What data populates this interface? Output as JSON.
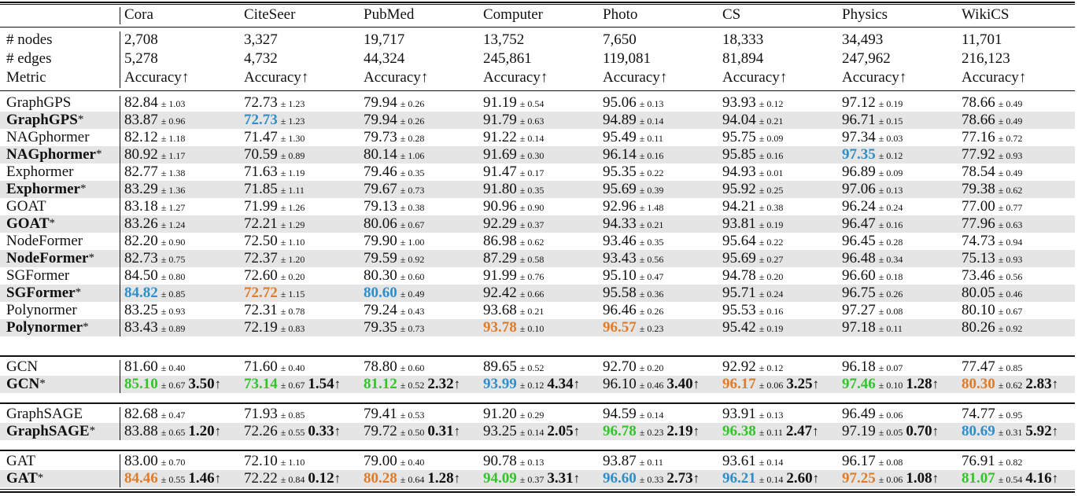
{
  "colors": {
    "first": "#33c42b",
    "second": "#e07b28",
    "third": "#2e8fc8",
    "shade": "#e5e5e5"
  },
  "header": {
    "columns": [
      "Cora",
      "CiteSeer",
      "PubMed",
      "Computer",
      "Photo",
      "CS",
      "Physics",
      "WikiCS"
    ],
    "stats": [
      {
        "label": "# nodes",
        "values": [
          "2,708",
          "3,327",
          "19,717",
          "13,752",
          "7,650",
          "18,333",
          "34,493",
          "11,701"
        ]
      },
      {
        "label": "# edges",
        "values": [
          "5,278",
          "4,732",
          "44,324",
          "245,861",
          "119,081",
          "81,894",
          "247,962",
          "216,123"
        ]
      },
      {
        "label": "Metric",
        "values": [
          "Accuracy↑",
          "Accuracy↑",
          "Accuracy↑",
          "Accuracy↑",
          "Accuracy↑",
          "Accuracy↑",
          "Accuracy↑",
          "Accuracy↑"
        ]
      }
    ]
  },
  "groups": [
    {
      "rows": [
        {
          "name": "GraphGPS",
          "star": false,
          "cells": [
            [
              "82.84",
              "± 1.03"
            ],
            [
              "72.73",
              "± 1.23"
            ],
            [
              "79.94",
              "± 0.26"
            ],
            [
              "91.19",
              "± 0.54"
            ],
            [
              "95.06",
              "± 0.13"
            ],
            [
              "93.93",
              "± 0.12"
            ],
            [
              "97.12",
              "± 0.19"
            ],
            [
              "78.66",
              "± 0.49"
            ]
          ]
        },
        {
          "name": "GraphGPS",
          "star": true,
          "cells": [
            [
              "83.87",
              "± 0.96"
            ],
            [
              "72.73",
              "± 1.23",
              "blue"
            ],
            [
              "79.94",
              "± 0.26"
            ],
            [
              "91.79",
              "± 0.63"
            ],
            [
              "94.89",
              "± 0.14"
            ],
            [
              "94.04",
              "± 0.21"
            ],
            [
              "96.71",
              "± 0.15"
            ],
            [
              "78.66",
              "± 0.49"
            ]
          ]
        },
        {
          "name": "NAGphormer",
          "star": false,
          "cells": [
            [
              "82.12",
              "± 1.18"
            ],
            [
              "71.47",
              "± 1.30"
            ],
            [
              "79.73",
              "± 0.28"
            ],
            [
              "91.22",
              "± 0.14"
            ],
            [
              "95.49",
              "± 0.11"
            ],
            [
              "95.75",
              "± 0.09"
            ],
            [
              "97.34",
              "± 0.03"
            ],
            [
              "77.16",
              "± 0.72"
            ]
          ]
        },
        {
          "name": "NAGphormer",
          "star": true,
          "cells": [
            [
              "80.92",
              "± 1.17"
            ],
            [
              "70.59",
              "± 0.89"
            ],
            [
              "80.14",
              "± 1.06"
            ],
            [
              "91.69",
              "± 0.30"
            ],
            [
              "96.14",
              "± 0.16"
            ],
            [
              "95.85",
              "± 0.16"
            ],
            [
              "97.35",
              "± 0.12",
              "blue"
            ],
            [
              "77.92",
              "± 0.93"
            ]
          ]
        },
        {
          "name": "Exphormer",
          "star": false,
          "cells": [
            [
              "82.77",
              "± 1.38"
            ],
            [
              "71.63",
              "± 1.19"
            ],
            [
              "79.46",
              "± 0.35"
            ],
            [
              "91.47",
              "± 0.17"
            ],
            [
              "95.35",
              "± 0.22"
            ],
            [
              "94.93",
              "± 0.01"
            ],
            [
              "96.89",
              "± 0.09"
            ],
            [
              "78.54",
              "± 0.49"
            ]
          ]
        },
        {
          "name": "Exphormer",
          "star": true,
          "cells": [
            [
              "83.29",
              "± 1.36"
            ],
            [
              "71.85",
              "± 1.11"
            ],
            [
              "79.67",
              "± 0.73"
            ],
            [
              "91.80",
              "± 0.35"
            ],
            [
              "95.69",
              "± 0.39"
            ],
            [
              "95.92",
              "± 0.25"
            ],
            [
              "97.06",
              "± 0.13"
            ],
            [
              "79.38",
              "± 0.62"
            ]
          ]
        },
        {
          "name": "GOAT",
          "star": false,
          "cells": [
            [
              "83.18",
              "± 1.27"
            ],
            [
              "71.99",
              "± 1.26"
            ],
            [
              "79.13",
              "± 0.38"
            ],
            [
              "90.96",
              "± 0.90"
            ],
            [
              "92.96",
              "± 1.48"
            ],
            [
              "94.21",
              "± 0.38"
            ],
            [
              "96.24",
              "± 0.24"
            ],
            [
              "77.00",
              "± 0.77"
            ]
          ]
        },
        {
          "name": "GOAT",
          "star": true,
          "cells": [
            [
              "83.26",
              "± 1.24"
            ],
            [
              "72.21",
              "± 1.29"
            ],
            [
              "80.06",
              "± 0.67"
            ],
            [
              "92.29",
              "± 0.37"
            ],
            [
              "94.33",
              "± 0.21"
            ],
            [
              "93.81",
              "± 0.19"
            ],
            [
              "96.47",
              "± 0.16"
            ],
            [
              "77.96",
              "± 0.63"
            ]
          ]
        },
        {
          "name": "NodeFormer",
          "star": false,
          "cells": [
            [
              "82.20",
              "± 0.90"
            ],
            [
              "72.50",
              "± 1.10"
            ],
            [
              "79.90",
              "± 1.00"
            ],
            [
              "86.98",
              "± 0.62"
            ],
            [
              "93.46",
              "± 0.35"
            ],
            [
              "95.64",
              "± 0.22"
            ],
            [
              "96.45",
              "± 0.28"
            ],
            [
              "74.73",
              "± 0.94"
            ]
          ]
        },
        {
          "name": "NodeFormer",
          "star": true,
          "cells": [
            [
              "82.73",
              "± 0.75"
            ],
            [
              "72.37",
              "± 1.20"
            ],
            [
              "79.59",
              "± 0.92"
            ],
            [
              "87.29",
              "± 0.58"
            ],
            [
              "93.43",
              "± 0.56"
            ],
            [
              "95.69",
              "± 0.27"
            ],
            [
              "96.48",
              "± 0.34"
            ],
            [
              "75.13",
              "± 0.93"
            ]
          ]
        },
        {
          "name": "SGFormer",
          "star": false,
          "cells": [
            [
              "84.50",
              "± 0.80"
            ],
            [
              "72.60",
              "± 0.20"
            ],
            [
              "80.30",
              "± 0.60"
            ],
            [
              "91.99",
              "± 0.76"
            ],
            [
              "95.10",
              "± 0.47"
            ],
            [
              "94.78",
              "± 0.20"
            ],
            [
              "96.60",
              "± 0.18"
            ],
            [
              "73.46",
              "± 0.56"
            ]
          ]
        },
        {
          "name": "SGFormer",
          "star": true,
          "cells": [
            [
              "84.82",
              "± 0.85",
              "blue"
            ],
            [
              "72.72",
              "± 1.15",
              "orange"
            ],
            [
              "80.60",
              "± 0.49",
              "blue"
            ],
            [
              "92.42",
              "± 0.66"
            ],
            [
              "95.58",
              "± 0.36"
            ],
            [
              "95.71",
              "± 0.24"
            ],
            [
              "96.75",
              "± 0.26"
            ],
            [
              "80.05",
              "± 0.46"
            ]
          ]
        },
        {
          "name": "Polynormer",
          "star": false,
          "cells": [
            [
              "83.25",
              "± 0.93"
            ],
            [
              "72.31",
              "± 0.78"
            ],
            [
              "79.24",
              "± 0.43"
            ],
            [
              "93.68",
              "± 0.21"
            ],
            [
              "96.46",
              "± 0.26"
            ],
            [
              "95.53",
              "± 0.16"
            ],
            [
              "97.27",
              "± 0.08"
            ],
            [
              "80.10",
              "± 0.67"
            ]
          ]
        },
        {
          "name": "Polynormer",
          "star": true,
          "cells": [
            [
              "83.43",
              "± 0.89"
            ],
            [
              "72.19",
              "± 0.83"
            ],
            [
              "79.35",
              "± 0.73"
            ],
            [
              "93.78",
              "± 0.10",
              "orange"
            ],
            [
              "96.57",
              "± 0.23",
              "orange"
            ],
            [
              "95.42",
              "± 0.19"
            ],
            [
              "97.18",
              "± 0.11"
            ],
            [
              "80.26",
              "± 0.92"
            ]
          ]
        }
      ]
    },
    {
      "rows": [
        {
          "name": "GCN",
          "star": false,
          "cells": [
            [
              "81.60",
              "± 0.40"
            ],
            [
              "71.60",
              "± 0.40"
            ],
            [
              "78.80",
              "± 0.60"
            ],
            [
              "89.65",
              "± 0.52"
            ],
            [
              "92.70",
              "± 0.20"
            ],
            [
              "92.92",
              "± 0.12"
            ],
            [
              "96.18",
              "± 0.07"
            ],
            [
              "77.47",
              "± 0.85"
            ]
          ]
        },
        {
          "name": "GCN",
          "star": true,
          "cells": [
            [
              "85.10",
              "± 0.67",
              "green",
              "3.50"
            ],
            [
              "73.14",
              "± 0.67",
              "green",
              "1.54"
            ],
            [
              "81.12",
              "± 0.52",
              "green",
              "2.32"
            ],
            [
              "93.99",
              "± 0.12",
              "blue",
              "4.34"
            ],
            [
              "96.10",
              "± 0.46",
              "",
              "3.40"
            ],
            [
              "96.17",
              "± 0.06",
              "orange",
              "3.25"
            ],
            [
              "97.46",
              "± 0.10",
              "green",
              "1.28"
            ],
            [
              "80.30",
              "± 0.62",
              "orange",
              "2.83"
            ]
          ]
        }
      ]
    },
    {
      "rows": [
        {
          "name": "GraphSAGE",
          "star": false,
          "cells": [
            [
              "82.68",
              "± 0.47"
            ],
            [
              "71.93",
              "± 0.85"
            ],
            [
              "79.41",
              "± 0.53"
            ],
            [
              "91.20",
              "± 0.29"
            ],
            [
              "94.59",
              "± 0.14"
            ],
            [
              "93.91",
              "± 0.13"
            ],
            [
              "96.49",
              "± 0.06"
            ],
            [
              "74.77",
              "± 0.95"
            ]
          ]
        },
        {
          "name": "GraphSAGE",
          "star": true,
          "cells": [
            [
              "83.88",
              "± 0.65",
              "",
              "1.20"
            ],
            [
              "72.26",
              "± 0.55",
              "",
              "0.33"
            ],
            [
              "79.72",
              "± 0.50",
              "",
              "0.31"
            ],
            [
              "93.25",
              "± 0.14",
              "",
              "2.05"
            ],
            [
              "96.78",
              "± 0.23",
              "green",
              "2.19"
            ],
            [
              "96.38",
              "± 0.11",
              "green",
              "2.47"
            ],
            [
              "97.19",
              "± 0.05",
              "",
              "0.70"
            ],
            [
              "80.69",
              "± 0.31",
              "blue",
              "5.92"
            ]
          ]
        }
      ]
    },
    {
      "rows": [
        {
          "name": "GAT",
          "star": false,
          "cells": [
            [
              "83.00",
              "± 0.70"
            ],
            [
              "72.10",
              "± 1.10"
            ],
            [
              "79.00",
              "± 0.40"
            ],
            [
              "90.78",
              "± 0.13"
            ],
            [
              "93.87",
              "± 0.11"
            ],
            [
              "93.61",
              "± 0.14"
            ],
            [
              "96.17",
              "± 0.08"
            ],
            [
              "76.91",
              "± 0.82"
            ]
          ]
        },
        {
          "name": "GAT",
          "star": true,
          "cells": [
            [
              "84.46",
              "± 0.55",
              "orange",
              "1.46"
            ],
            [
              "72.22",
              "± 0.84",
              "",
              "0.12"
            ],
            [
              "80.28",
              "± 0.64",
              "orange",
              "1.28"
            ],
            [
              "94.09",
              "± 0.37",
              "green",
              "3.31"
            ],
            [
              "96.60",
              "± 0.33",
              "blue",
              "2.73"
            ],
            [
              "96.21",
              "± 0.14",
              "blue",
              "2.60"
            ],
            [
              "97.25",
              "± 0.06",
              "orange",
              "1.08"
            ],
            [
              "81.07",
              "± 0.54",
              "green",
              "4.16"
            ]
          ]
        }
      ]
    }
  ],
  "symbols": {
    "star": "*",
    "gain_arrow": "↑"
  }
}
